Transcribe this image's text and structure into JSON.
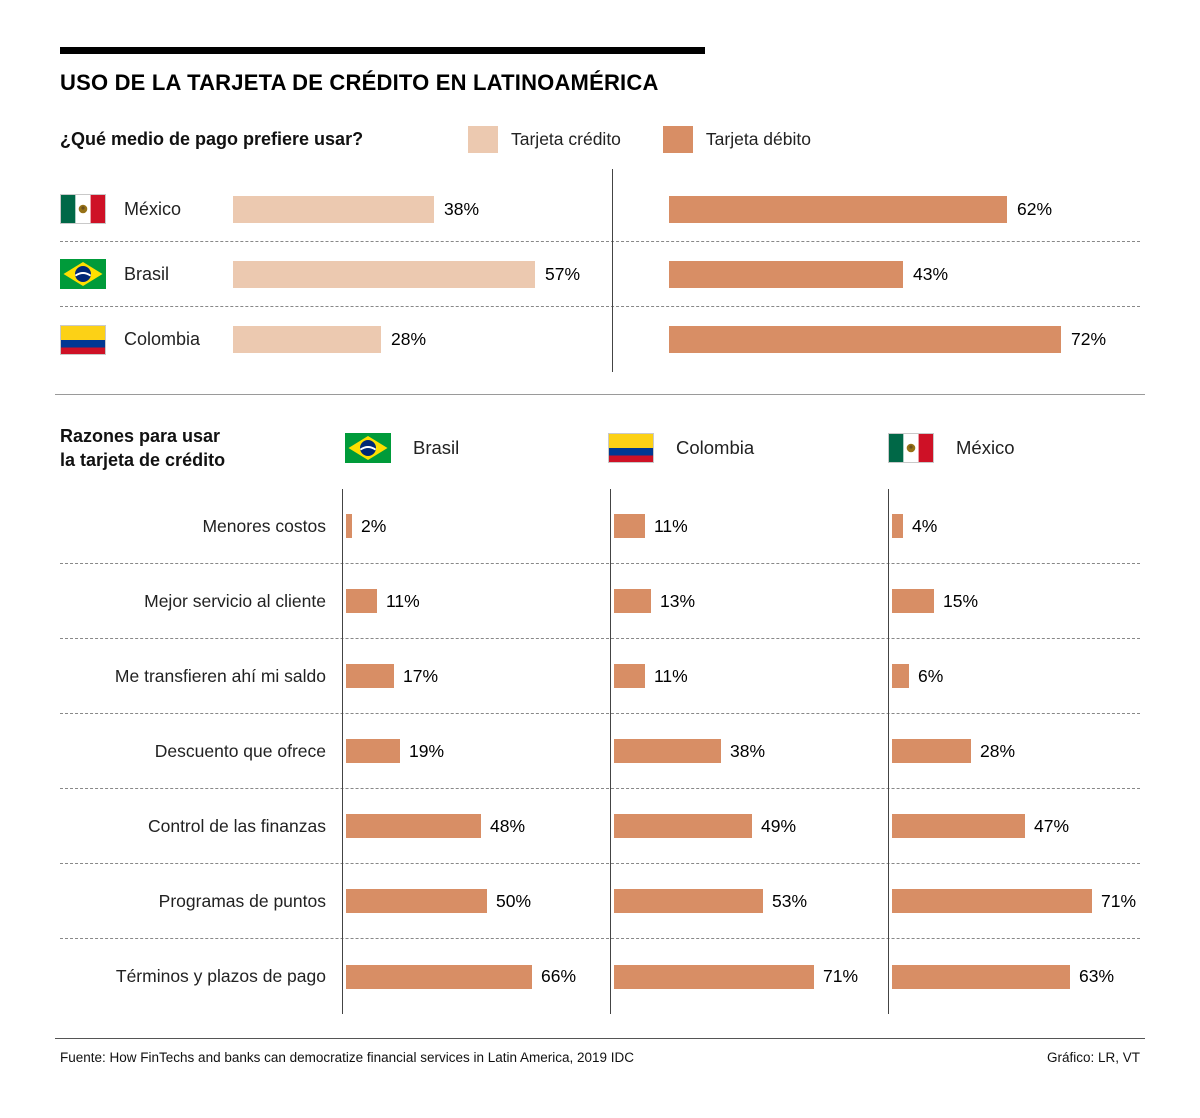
{
  "title": "USO DE LA TARJETA DE CRÉDITO EN LATINOAMÉRICA",
  "colors": {
    "credit": "#ecc9b0",
    "debit": "#d88e65",
    "text": "#000000",
    "divider": "#888888"
  },
  "flag_icons": {
    "México": "mexico-flag",
    "Brasil": "brazil-flag",
    "Colombia": "colombia-flag"
  },
  "section2": {
    "title_line1": "Razones para usar",
    "title_line2": "la tarjeta de crédito"
  },
  "footer": {
    "source": "Fuente: How FinTechs and banks can democratize financial services in Latin America, 2019 IDC",
    "credit": "Gráfico: LR, VT"
  },
  "chart_data": [
    {
      "type": "bar",
      "orientation": "horizontal",
      "title": "¿Qué medio de pago prefiere usar?",
      "unit": "%",
      "categories": [
        "México",
        "Brasil",
        "Colombia"
      ],
      "series": [
        {
          "name": "Tarjeta crédito",
          "values": [
            38,
            57,
            28
          ],
          "color": "#ecc9b0"
        },
        {
          "name": "Tarjeta débito",
          "values": [
            62,
            43,
            72
          ],
          "color": "#d88e65"
        }
      ],
      "value_labels": true,
      "legend_position": "top",
      "xlim": [
        0,
        100
      ],
      "grid": false
    },
    {
      "type": "bar",
      "orientation": "horizontal",
      "title": "Razones para usar la tarjeta de crédito",
      "unit": "%",
      "categories": [
        "Menores costos",
        "Mejor servicio al cliente",
        "Me transfieren ahí mi saldo",
        "Descuento que ofrece",
        "Control de las finanzas",
        "Programas de puntos",
        "Términos y plazos de pago"
      ],
      "series": [
        {
          "name": "Brasil",
          "values": [
            2,
            11,
            17,
            19,
            48,
            50,
            66
          ],
          "color": "#d88e65"
        },
        {
          "name": "Colombia",
          "values": [
            11,
            13,
            11,
            38,
            49,
            53,
            71
          ],
          "color": "#d88e65"
        },
        {
          "name": "México",
          "values": [
            4,
            15,
            6,
            28,
            47,
            71,
            63
          ],
          "color": "#d88e65"
        }
      ],
      "value_labels": true,
      "legend_position": "top-columns",
      "xlim": [
        0,
        100
      ],
      "grid": false
    }
  ]
}
